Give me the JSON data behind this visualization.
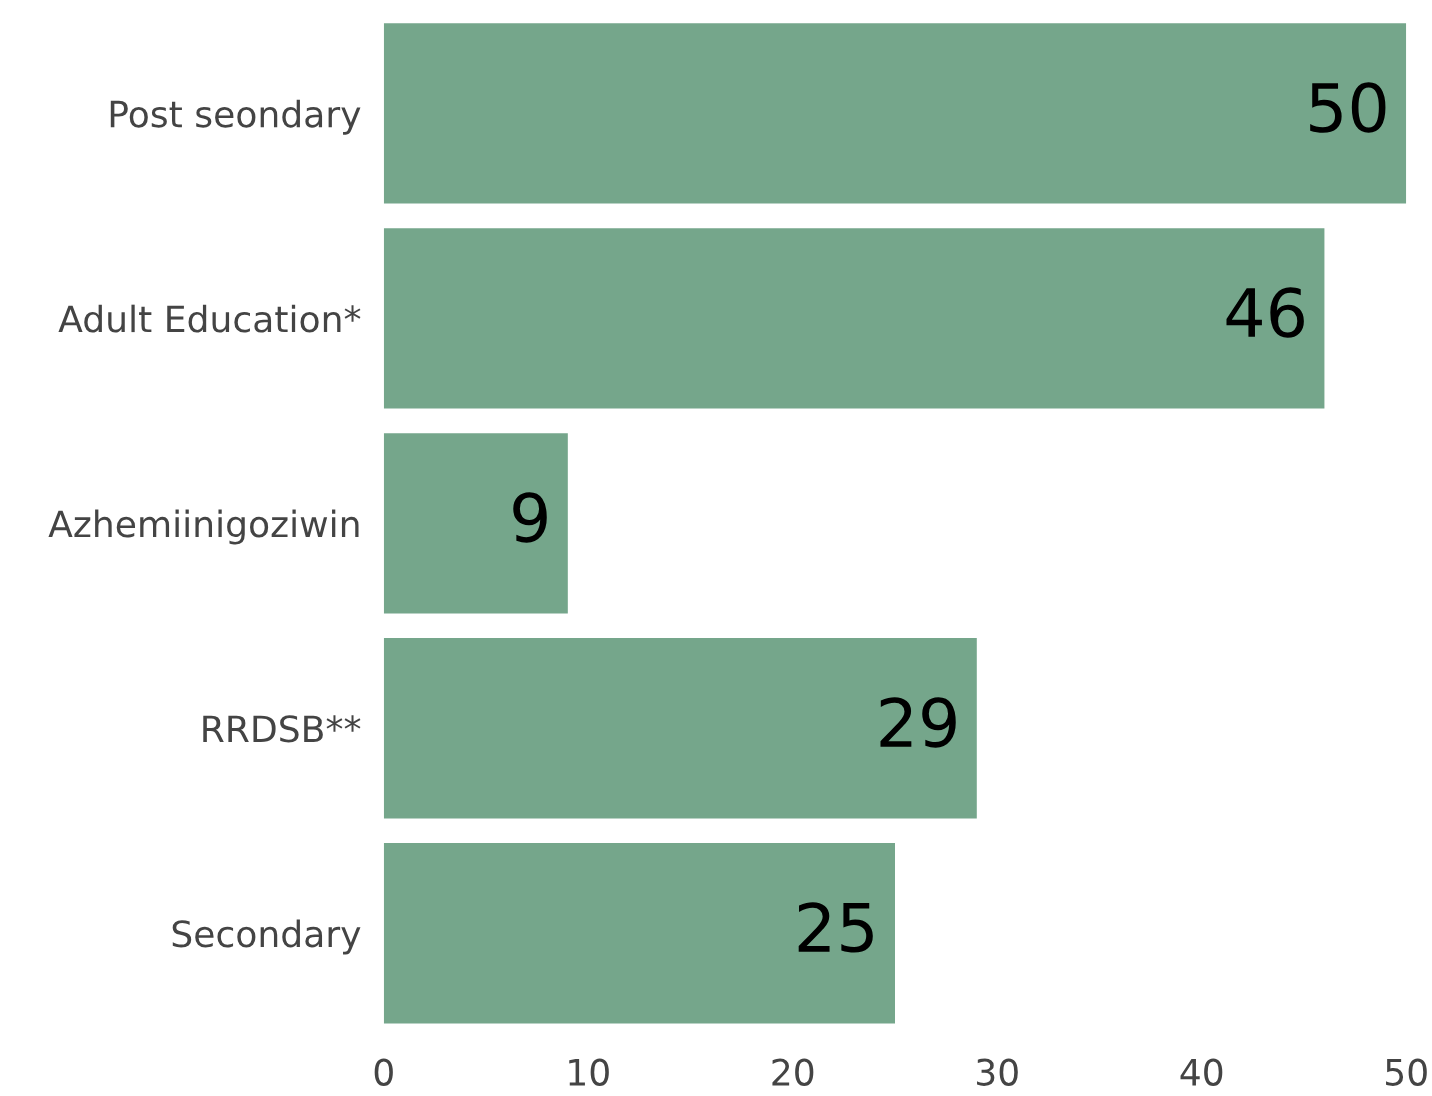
{
  "chart_data": {
    "type": "bar",
    "orientation": "horizontal",
    "categories": [
      "Post seondary",
      "Adult Education*",
      "Azhemiinigoziwin",
      "RRDSB**",
      "Secondary"
    ],
    "values": [
      50,
      46,
      9,
      29,
      25
    ],
    "color": "#75a68b",
    "xlim": [
      0,
      50
    ],
    "xticks": [
      0,
      10,
      20,
      30,
      40,
      50
    ],
    "data_labels": true,
    "grid": false,
    "legend": false
  }
}
